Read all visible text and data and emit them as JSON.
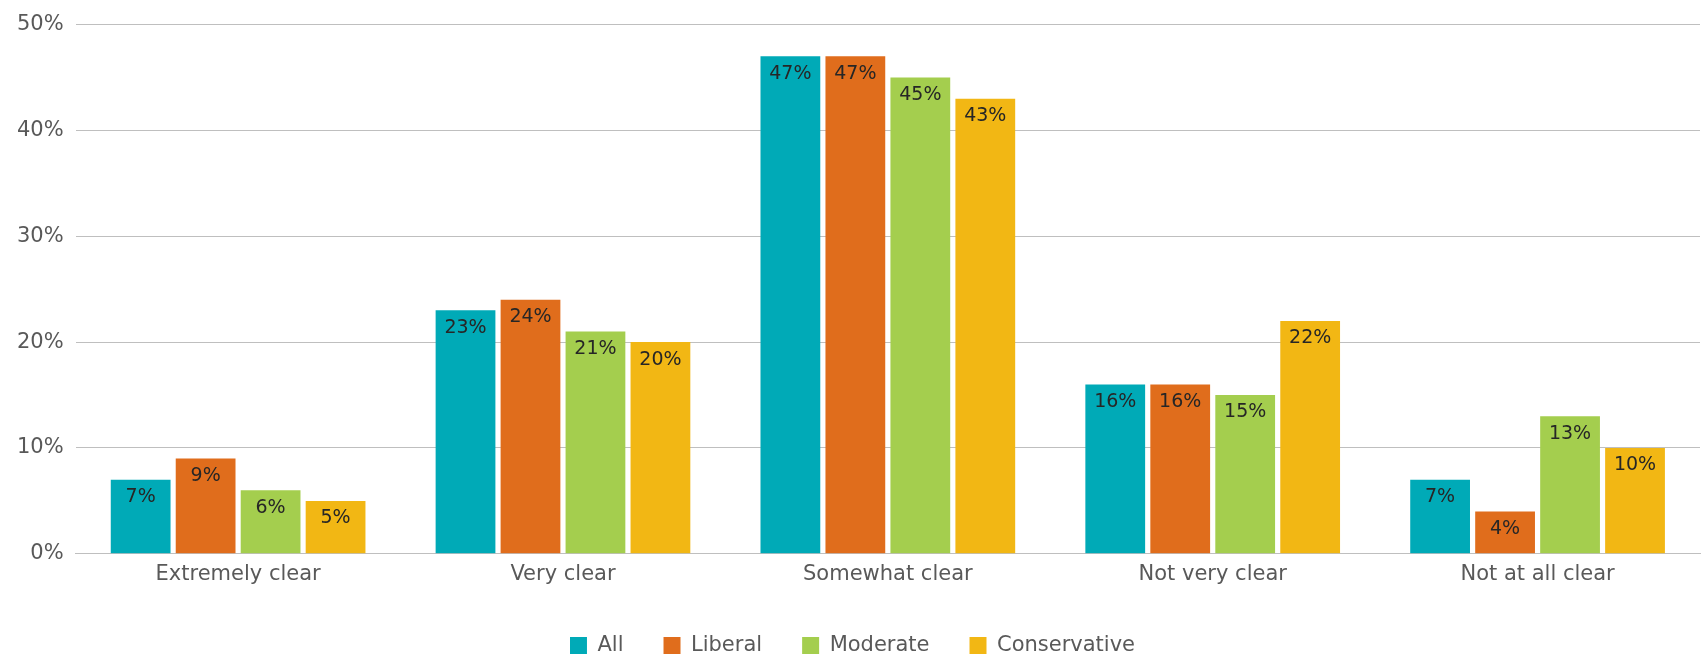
{
  "chart_data": {
    "type": "bar",
    "categories": [
      "Extremely clear",
      "Very clear",
      "Somewhat clear",
      "Not very clear",
      "Not at all clear"
    ],
    "series": [
      {
        "name": "All",
        "color": "#00aab7",
        "values": [
          7,
          23,
          47,
          16,
          7
        ],
        "value_labels": [
          "7%",
          "23%",
          "47%",
          "16%",
          "7%"
        ]
      },
      {
        "name": "Liberal",
        "color": "#e06d1c",
        "values": [
          9,
          24,
          47,
          16,
          4
        ],
        "value_labels": [
          "9%",
          "24%",
          "47%",
          "16%",
          "4%"
        ]
      },
      {
        "name": "Moderate",
        "color": "#a4ce4e",
        "values": [
          6,
          21,
          45,
          15,
          13
        ],
        "value_labels": [
          "6%",
          "21%",
          "45%",
          "15%",
          "13%"
        ]
      },
      {
        "name": "Conservative",
        "color": "#f2b714",
        "values": [
          5,
          20,
          43,
          22,
          10
        ],
        "value_labels": [
          "5%",
          "20%",
          "43%",
          "22%",
          "10%"
        ]
      }
    ],
    "ylim": [
      0,
      50
    ],
    "yticks": [
      {
        "value": 0,
        "label": "0%"
      },
      {
        "value": 10,
        "label": "10%"
      },
      {
        "value": 20,
        "label": "20%"
      },
      {
        "value": 30,
        "label": "30%"
      },
      {
        "value": 40,
        "label": "40%"
      },
      {
        "value": 50,
        "label": "50%"
      }
    ],
    "grid": "y",
    "legend": "bottom"
  }
}
